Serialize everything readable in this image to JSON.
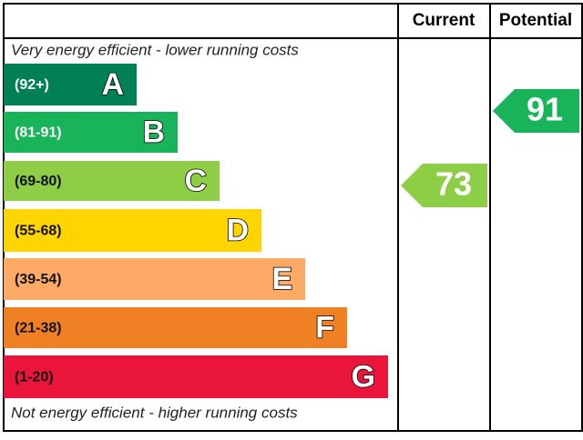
{
  "header": {
    "current": "Current",
    "potential": "Potential"
  },
  "top_note": "Very energy efficient - lower running costs",
  "bottom_note": "Not energy efficient - higher running costs",
  "bands": [
    {
      "range": "(92+)",
      "letter": "A"
    },
    {
      "range": "(81-91)",
      "letter": "B"
    },
    {
      "range": "(69-80)",
      "letter": "C"
    },
    {
      "range": "(55-68)",
      "letter": "D"
    },
    {
      "range": "(39-54)",
      "letter": "E"
    },
    {
      "range": "(21-38)",
      "letter": "F"
    },
    {
      "range": "(1-20)",
      "letter": "G"
    }
  ],
  "current": 73,
  "potential": 91
}
